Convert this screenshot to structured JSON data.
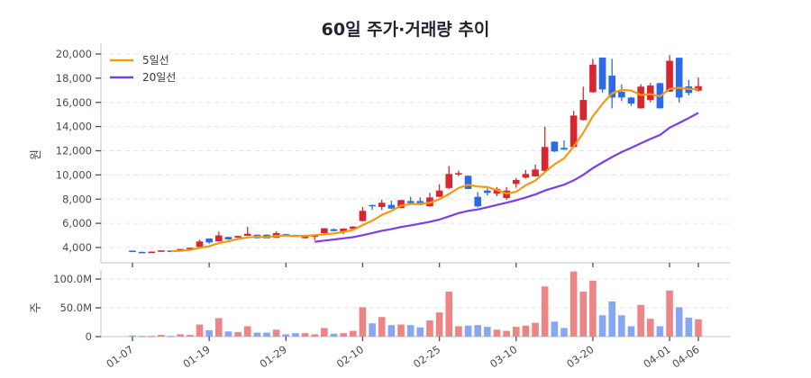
{
  "title": "60일 주가·거래량 추이",
  "colors": {
    "up": "#d9262e",
    "down": "#2d6be6",
    "volume_up": "#ec8585",
    "volume_down": "#86a8f2",
    "ma5": "#f39a12",
    "ma20": "#7b3fe4",
    "grid": "#e3e5e8",
    "axis": "#d3d8df"
  },
  "legend": [
    {
      "label": "5일선",
      "color": "#f39a12"
    },
    {
      "label": "20일선",
      "color": "#7b3fe4"
    }
  ],
  "chart_data": [
    {
      "type": "candlestick",
      "title": "60일 주가·거래량 추이",
      "ylabel": "원",
      "ylim": [
        3500,
        20800
      ],
      "yticks": [
        4000,
        6000,
        8000,
        10000,
        12000,
        14000,
        16000,
        18000,
        20000
      ],
      "ytick_labels": [
        "4,000",
        "6,000",
        "8,000",
        "10,000",
        "12,000",
        "14,000",
        "16,000",
        "18,000",
        "20,000"
      ],
      "grid": true,
      "legend_position": "upper left",
      "x_tick_indices": [
        0,
        8,
        16,
        24,
        32,
        40,
        48,
        56,
        59
      ],
      "x_tick_labels": [
        "01-07",
        "01-19",
        "01-29",
        "02-10",
        "02-25",
        "03-10",
        "03-20",
        "04-01",
        "04-06"
      ],
      "ohlc_fields": [
        "open",
        "high",
        "low",
        "close"
      ],
      "ohlc": [
        [
          3740,
          3750,
          3690,
          3700
        ],
        [
          3640,
          3650,
          3590,
          3600
        ],
        [
          3620,
          3670,
          3610,
          3660
        ],
        [
          3720,
          3770,
          3710,
          3760
        ],
        [
          3750,
          3760,
          3720,
          3730
        ],
        [
          3830,
          3890,
          3820,
          3880
        ],
        [
          3940,
          3990,
          3930,
          3980
        ],
        [
          4050,
          4650,
          4030,
          4500
        ],
        [
          4740,
          4760,
          4320,
          4420
        ],
        [
          4500,
          5320,
          4480,
          5000
        ],
        [
          4870,
          4900,
          4640,
          4670
        ],
        [
          4820,
          4980,
          4800,
          4950
        ],
        [
          4970,
          5700,
          4950,
          5140
        ],
        [
          5060,
          5080,
          4760,
          4770
        ],
        [
          5060,
          5080,
          4740,
          4750
        ],
        [
          4800,
          5320,
          4790,
          5190
        ],
        [
          5110,
          5130,
          5010,
          5020
        ],
        [
          5040,
          5060,
          4880,
          4950
        ],
        [
          4770,
          4940,
          4760,
          4920
        ],
        [
          4960,
          5010,
          4610,
          5000
        ],
        [
          5190,
          5600,
          5180,
          5590
        ],
        [
          5510,
          5560,
          5340,
          5360
        ],
        [
          5320,
          5580,
          5100,
          5560
        ],
        [
          5540,
          5760,
          5530,
          5730
        ],
        [
          6190,
          7350,
          6150,
          7030
        ],
        [
          7520,
          7540,
          7100,
          7420
        ],
        [
          7350,
          7960,
          7100,
          7700
        ],
        [
          7520,
          7880,
          7180,
          7220
        ],
        [
          7270,
          7940,
          7250,
          7920
        ],
        [
          7840,
          8200,
          7640,
          7670
        ],
        [
          7840,
          8150,
          7480,
          7520
        ],
        [
          7400,
          8520,
          7380,
          8140
        ],
        [
          8190,
          9220,
          8170,
          8710
        ],
        [
          8920,
          10740,
          8850,
          10080
        ],
        [
          10030,
          10350,
          9900,
          10150
        ],
        [
          9930,
          9950,
          8820,
          8840
        ],
        [
          8190,
          8580,
          7320,
          7400
        ],
        [
          8710,
          8890,
          8300,
          8510
        ],
        [
          8460,
          9000,
          8250,
          8830
        ],
        [
          8090,
          9000,
          7940,
          8710
        ],
        [
          9260,
          9750,
          8940,
          9580
        ],
        [
          9780,
          10400,
          9700,
          10080
        ],
        [
          9880,
          10850,
          9860,
          10450
        ],
        [
          10330,
          14000,
          10300,
          12310
        ],
        [
          12750,
          12780,
          11900,
          11940
        ],
        [
          12240,
          12850,
          12080,
          12090
        ],
        [
          12310,
          15300,
          12280,
          14910
        ],
        [
          14540,
          17300,
          14500,
          16200
        ],
        [
          16840,
          19600,
          16800,
          19120
        ],
        [
          19700,
          19720,
          16800,
          17070
        ],
        [
          18210,
          19600,
          15500,
          16400
        ],
        [
          16880,
          17500,
          16100,
          16400
        ],
        [
          16400,
          16450,
          15700,
          15900
        ],
        [
          15510,
          17500,
          15490,
          17300
        ],
        [
          16200,
          17600,
          16000,
          17390
        ],
        [
          17590,
          17620,
          15490,
          15510
        ],
        [
          16890,
          19900,
          16870,
          19440
        ],
        [
          19690,
          19700,
          16000,
          16400
        ],
        [
          17320,
          17850,
          16580,
          16780
        ],
        [
          16970,
          18060,
          16900,
          17340
        ]
      ],
      "moving_averages": [
        {
          "name": "5일선",
          "window": 5
        },
        {
          "name": "20일선",
          "window": 20
        }
      ]
    },
    {
      "type": "bar",
      "ylabel": "주",
      "ylim": [
        0,
        120
      ],
      "yticks": [
        0,
        50,
        100
      ],
      "ytick_labels": [
        "0",
        "50.0M",
        "100.0M"
      ],
      "unit": "M",
      "grid": true,
      "values": [
        2,
        1,
        1,
        3,
        1,
        4,
        3,
        21,
        11,
        32,
        9,
        8,
        18,
        7,
        7,
        12,
        4,
        6,
        6,
        4,
        15,
        5,
        6,
        10,
        51,
        23,
        34,
        20,
        21,
        20,
        16,
        28,
        42,
        78,
        18,
        19,
        20,
        17,
        12,
        10,
        17,
        19,
        24,
        87,
        26,
        15,
        113,
        78,
        97,
        37,
        61,
        37,
        18,
        55,
        31,
        18,
        80,
        51,
        33,
        30
      ]
    }
  ]
}
